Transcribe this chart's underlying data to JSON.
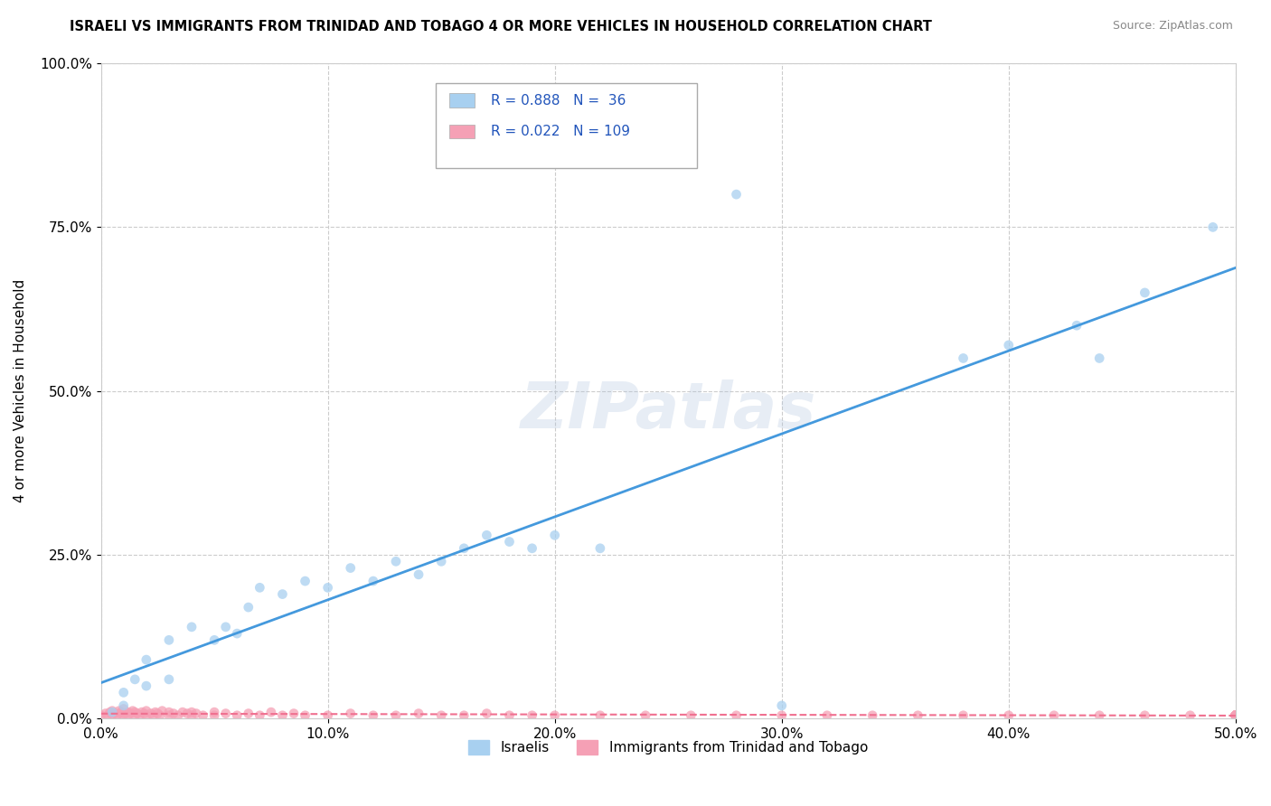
{
  "title": "ISRAELI VS IMMIGRANTS FROM TRINIDAD AND TOBAGO 4 OR MORE VEHICLES IN HOUSEHOLD CORRELATION CHART",
  "source": "Source: ZipAtlas.com",
  "ylabel": "4 or more Vehicles in Household",
  "xlabel": "",
  "xlim": [
    0.0,
    0.5
  ],
  "ylim": [
    0.0,
    1.0
  ],
  "xticks": [
    0.0,
    0.1,
    0.2,
    0.3,
    0.4,
    0.5
  ],
  "xticklabels": [
    "0.0%",
    "10.0%",
    "20.0%",
    "30.0%",
    "40.0%",
    "50.0%"
  ],
  "yticks": [
    0.0,
    0.25,
    0.5,
    0.75,
    1.0
  ],
  "yticklabels": [
    "0.0%",
    "25.0%",
    "50.0%",
    "75.0%",
    "100.0%"
  ],
  "israeli_R": 0.888,
  "israeli_N": 36,
  "trinidad_R": 0.022,
  "trinidad_N": 109,
  "israeli_color": "#a8d0f0",
  "trinidad_color": "#f5a0b5",
  "israeli_line_color": "#4499dd",
  "trinidad_line_color": "#f07090",
  "watermark": "ZIPatlas",
  "legend_labels": [
    "Israelis",
    "Immigrants from Trinidad and Tobago"
  ],
  "israeli_scatter_x": [
    0.005,
    0.01,
    0.01,
    0.015,
    0.02,
    0.02,
    0.03,
    0.03,
    0.04,
    0.05,
    0.055,
    0.06,
    0.065,
    0.07,
    0.08,
    0.09,
    0.1,
    0.11,
    0.12,
    0.13,
    0.14,
    0.15,
    0.16,
    0.17,
    0.18,
    0.19,
    0.2,
    0.22,
    0.28,
    0.3,
    0.38,
    0.4,
    0.43,
    0.44,
    0.46,
    0.49
  ],
  "israeli_scatter_y": [
    0.01,
    0.02,
    0.04,
    0.06,
    0.05,
    0.09,
    0.06,
    0.12,
    0.14,
    0.12,
    0.14,
    0.13,
    0.17,
    0.2,
    0.19,
    0.21,
    0.2,
    0.23,
    0.21,
    0.24,
    0.22,
    0.24,
    0.26,
    0.28,
    0.27,
    0.26,
    0.28,
    0.26,
    0.8,
    0.02,
    0.55,
    0.57,
    0.6,
    0.55,
    0.65,
    0.75
  ],
  "trinidad_scatter_x": [
    0.0,
    0.002,
    0.003,
    0.004,
    0.005,
    0.005,
    0.006,
    0.007,
    0.008,
    0.008,
    0.009,
    0.01,
    0.01,
    0.01,
    0.012,
    0.012,
    0.013,
    0.014,
    0.015,
    0.015,
    0.016,
    0.017,
    0.018,
    0.019,
    0.02,
    0.02,
    0.022,
    0.023,
    0.024,
    0.025,
    0.026,
    0.027,
    0.03,
    0.03,
    0.032,
    0.034,
    0.036,
    0.038,
    0.04,
    0.04,
    0.042,
    0.045,
    0.05,
    0.05,
    0.055,
    0.06,
    0.065,
    0.07,
    0.075,
    0.08,
    0.085,
    0.09,
    0.1,
    0.11,
    0.12,
    0.13,
    0.14,
    0.15,
    0.16,
    0.17,
    0.18,
    0.19,
    0.2,
    0.22,
    0.24,
    0.26,
    0.28,
    0.3,
    0.32,
    0.34,
    0.36,
    0.38,
    0.4,
    0.42,
    0.44,
    0.46,
    0.48,
    0.5,
    0.5,
    0.5,
    0.5,
    0.5,
    0.5,
    0.5,
    0.5,
    0.5,
    0.5,
    0.5,
    0.5,
    0.5,
    0.5,
    0.5,
    0.5,
    0.5,
    0.5,
    0.5,
    0.5,
    0.5,
    0.5,
    0.5,
    0.5,
    0.5,
    0.5,
    0.5,
    0.5,
    0.5,
    0.5,
    0.5,
    0.5
  ],
  "trinidad_scatter_y": [
    0.005,
    0.008,
    0.005,
    0.01,
    0.005,
    0.012,
    0.008,
    0.005,
    0.008,
    0.012,
    0.01,
    0.005,
    0.008,
    0.015,
    0.01,
    0.005,
    0.008,
    0.012,
    0.005,
    0.01,
    0.008,
    0.005,
    0.01,
    0.008,
    0.005,
    0.012,
    0.008,
    0.005,
    0.01,
    0.008,
    0.005,
    0.012,
    0.005,
    0.01,
    0.008,
    0.005,
    0.01,
    0.008,
    0.005,
    0.01,
    0.008,
    0.005,
    0.005,
    0.01,
    0.008,
    0.005,
    0.008,
    0.005,
    0.01,
    0.005,
    0.008,
    0.005,
    0.005,
    0.008,
    0.005,
    0.005,
    0.008,
    0.005,
    0.005,
    0.008,
    0.005,
    0.005,
    0.005,
    0.005,
    0.005,
    0.005,
    0.005,
    0.005,
    0.005,
    0.005,
    0.005,
    0.005,
    0.005,
    0.005,
    0.005,
    0.005,
    0.005,
    0.005,
    0.005,
    0.005,
    0.005,
    0.005,
    0.005,
    0.005,
    0.005,
    0.005,
    0.005,
    0.005,
    0.005,
    0.005,
    0.005,
    0.005,
    0.005,
    0.005,
    0.005,
    0.005,
    0.005,
    0.005,
    0.005,
    0.005,
    0.005,
    0.005,
    0.005,
    0.005,
    0.005,
    0.005,
    0.005,
    0.005,
    0.005
  ]
}
